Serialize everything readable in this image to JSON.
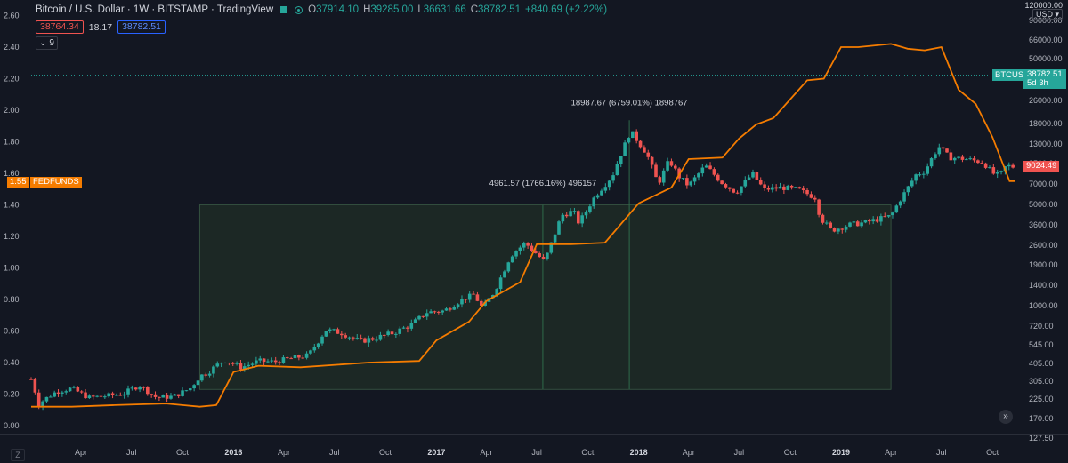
{
  "header": {
    "symbol": "Bitcoin / U.S. Dollar · 1W · BITSTAMP · TradingView",
    "open_label": "O",
    "open": "37914.10",
    "high_label": "H",
    "high": "39285.00",
    "low_label": "L",
    "low": "36631.66",
    "close_label": "C",
    "close": "38782.51",
    "change": "+840.69 (+2.22%)"
  },
  "quote": {
    "bid": "38764.34",
    "spread": "18.17",
    "ask": "38782.51"
  },
  "indicator_toggle": {
    "count": "9"
  },
  "currency": {
    "top": "120000.00",
    "selected": "USD ▾"
  },
  "badges": {
    "fed_value": "1.55",
    "fed_name": "FEDFUNDS",
    "btc_name": "BTCUSD",
    "btc_price": "38782.51",
    "btc_time": "5d 3h",
    "price_tag": "9024.49"
  },
  "buttons": {
    "z": "Z",
    "forward": "»"
  },
  "colors": {
    "background": "#131722",
    "up": "#26a69a",
    "down": "#ef5350",
    "fedfunds": "#f57c00",
    "range_fill": "#1e2b26"
  },
  "chart_data": [
    {
      "type": "candlestick",
      "series_name": "BTCUSD",
      "y_axis": "right",
      "y_scale": "log",
      "y_ticks": [
        127.5,
        170,
        225,
        305,
        405,
        545,
        720,
        1000,
        1400,
        1900,
        2600,
        3600,
        5000,
        7000,
        9500,
        13000,
        18000,
        26000,
        36000,
        50000,
        66000,
        90000
      ],
      "y_tick_labels": [
        "127.50",
        "170.00",
        "225.00",
        "305.00",
        "405.00",
        "545.00",
        "720.00",
        "1000.00",
        "1400.00",
        "1900.00",
        "2600.00",
        "3600.00",
        "5000.00",
        "7000.00",
        "9500.00",
        "13000.00",
        "18000.00",
        "26000.00",
        "36000.00",
        "50000.00",
        "66000.00",
        "90000.00"
      ],
      "x_range": [
        "2015-01-01",
        "2019-11-10"
      ],
      "x_ticks": [
        "2015-04-01",
        "2015-07-01",
        "2015-10-01",
        "2016-01-01",
        "2016-04-01",
        "2016-07-01",
        "2016-10-01",
        "2017-01-01",
        "2017-04-01",
        "2017-07-01",
        "2017-10-01",
        "2018-01-01",
        "2018-04-01",
        "2018-07-01",
        "2018-10-01",
        "2019-01-01",
        "2019-04-01",
        "2019-07-01",
        "2019-10-01"
      ],
      "x_tick_labels": [
        "Apr",
        "Jul",
        "Oct",
        "2016",
        "Apr",
        "Jul",
        "Oct",
        "2017",
        "Apr",
        "Jul",
        "Oct",
        "2018",
        "Apr",
        "Jul",
        "Oct",
        "2019",
        "Apr",
        "Jul",
        "Oct"
      ],
      "close_path": [
        [
          "2015-01-01",
          315
        ],
        [
          "2015-01-15",
          210
        ],
        [
          "2015-02-15",
          255
        ],
        [
          "2015-03-15",
          270
        ],
        [
          "2015-04-15",
          230
        ],
        [
          "2015-05-15",
          237
        ],
        [
          "2015-06-15",
          245
        ],
        [
          "2015-07-15",
          285
        ],
        [
          "2015-08-15",
          230
        ],
        [
          "2015-09-15",
          235
        ],
        [
          "2015-10-15",
          270
        ],
        [
          "2015-11-01",
          330
        ],
        [
          "2015-11-15",
          350
        ],
        [
          "2015-12-15",
          430
        ],
        [
          "2016-01-15",
          380
        ],
        [
          "2016-02-15",
          420
        ],
        [
          "2016-03-15",
          415
        ],
        [
          "2016-04-15",
          440
        ],
        [
          "2016-05-15",
          460
        ],
        [
          "2016-06-15",
          680
        ],
        [
          "2016-07-15",
          650
        ],
        [
          "2016-08-15",
          575
        ],
        [
          "2016-09-15",
          605
        ],
        [
          "2016-10-15",
          650
        ],
        [
          "2016-11-15",
          730
        ],
        [
          "2016-12-15",
          900
        ],
        [
          "2017-01-15",
          920
        ],
        [
          "2017-02-15",
          1100
        ],
        [
          "2017-03-10",
          1200
        ],
        [
          "2017-03-25",
          960
        ],
        [
          "2017-04-15",
          1250
        ],
        [
          "2017-05-15",
          2200
        ],
        [
          "2017-06-10",
          2700
        ],
        [
          "2017-07-15",
          2000
        ],
        [
          "2017-08-15",
          4200
        ],
        [
          "2017-09-05",
          4500
        ],
        [
          "2017-09-15",
          3700
        ],
        [
          "2017-10-15",
          5800
        ],
        [
          "2017-11-15",
          8000
        ],
        [
          "2017-12-17",
          16000
        ],
        [
          "2018-01-15",
          11200
        ],
        [
          "2018-02-05",
          7000
        ],
        [
          "2018-02-25",
          10000
        ],
        [
          "2018-03-15",
          7800
        ],
        [
          "2018-04-01",
          6800
        ],
        [
          "2018-05-01",
          9200
        ],
        [
          "2018-06-01",
          7100
        ],
        [
          "2018-06-25",
          6100
        ],
        [
          "2018-07-25",
          8200
        ],
        [
          "2018-08-15",
          6400
        ],
        [
          "2018-09-15",
          6600
        ],
        [
          "2018-10-15",
          6400
        ],
        [
          "2018-11-15",
          5600
        ],
        [
          "2018-11-25",
          4000
        ],
        [
          "2018-12-15",
          3300
        ],
        [
          "2019-01-15",
          3600
        ],
        [
          "2019-02-15",
          3750
        ],
        [
          "2019-03-15",
          4000
        ],
        [
          "2019-04-01",
          4150
        ],
        [
          "2019-04-15",
          5200
        ],
        [
          "2019-05-15",
          8000
        ],
        [
          "2019-06-01",
          8500
        ],
        [
          "2019-06-26",
          12500
        ],
        [
          "2019-07-15",
          10500
        ],
        [
          "2019-08-15",
          10200
        ],
        [
          "2019-09-15",
          9700
        ],
        [
          "2019-10-01",
          8200
        ],
        [
          "2019-10-15",
          8000
        ],
        [
          "2019-10-26",
          9200
        ],
        [
          "2019-11-10",
          9024
        ]
      ],
      "annotations": [
        {
          "text": "4961.57 (1766.16%) 496157",
          "at": [
            "2017-07-12",
            6800
          ]
        },
        {
          "text": "18987.67 (6759.01%) 1898767",
          "at": [
            "2017-12-15",
            24000
          ]
        }
      ],
      "price_range": {
        "from_date": "2015-11-01",
        "to_date": "2019-04-01",
        "low": 265,
        "high": 4961.57,
        "markers": [
          "2017-07-12",
          "2017-12-15"
        ]
      },
      "last_price_line": 38782.51
    },
    {
      "type": "line",
      "series_name": "FEDFUNDS",
      "y_axis": "left",
      "y_range": [
        0,
        2.6
      ],
      "y_ticks": [
        0,
        0.2,
        0.4,
        0.6,
        0.8,
        1.0,
        1.2,
        1.4,
        1.6,
        1.8,
        2.0,
        2.2,
        2.4,
        2.6
      ],
      "y_tick_labels": [
        "0.00",
        "0.20",
        "0.40",
        "0.60",
        "0.80",
        "1.00",
        "1.20",
        "1.40",
        "1.60",
        "1.80",
        "2.00",
        "2.20",
        "2.40",
        "2.60"
      ],
      "points": [
        [
          "2015-01-01",
          0.12
        ],
        [
          "2015-03-15",
          0.12
        ],
        [
          "2015-06-01",
          0.13
        ],
        [
          "2015-09-01",
          0.14
        ],
        [
          "2015-10-01",
          0.13
        ],
        [
          "2015-11-01",
          0.12
        ],
        [
          "2015-12-01",
          0.13
        ],
        [
          "2016-01-01",
          0.34
        ],
        [
          "2016-02-15",
          0.38
        ],
        [
          "2016-05-01",
          0.37
        ],
        [
          "2016-09-01",
          0.4
        ],
        [
          "2016-12-01",
          0.41
        ],
        [
          "2017-01-01",
          0.54
        ],
        [
          "2017-03-01",
          0.66
        ],
        [
          "2017-04-01",
          0.79
        ],
        [
          "2017-06-01",
          0.91
        ],
        [
          "2017-07-01",
          1.15
        ],
        [
          "2017-09-01",
          1.15
        ],
        [
          "2017-11-01",
          1.16
        ],
        [
          "2018-01-01",
          1.41
        ],
        [
          "2018-03-01",
          1.51
        ],
        [
          "2018-04-01",
          1.69
        ],
        [
          "2018-06-01",
          1.7
        ],
        [
          "2018-07-01",
          1.82
        ],
        [
          "2018-08-01",
          1.91
        ],
        [
          "2018-09-01",
          1.95
        ],
        [
          "2018-11-01",
          2.19
        ],
        [
          "2018-12-01",
          2.2
        ],
        [
          "2019-01-01",
          2.4
        ],
        [
          "2019-02-01",
          2.4
        ],
        [
          "2019-04-01",
          2.42
        ],
        [
          "2019-05-01",
          2.39
        ],
        [
          "2019-06-01",
          2.38
        ],
        [
          "2019-07-01",
          2.4
        ],
        [
          "2019-08-01",
          2.13
        ],
        [
          "2019-09-01",
          2.04
        ],
        [
          "2019-10-01",
          1.83
        ],
        [
          "2019-11-01",
          1.55
        ]
      ],
      "last_value": 1.55
    }
  ]
}
